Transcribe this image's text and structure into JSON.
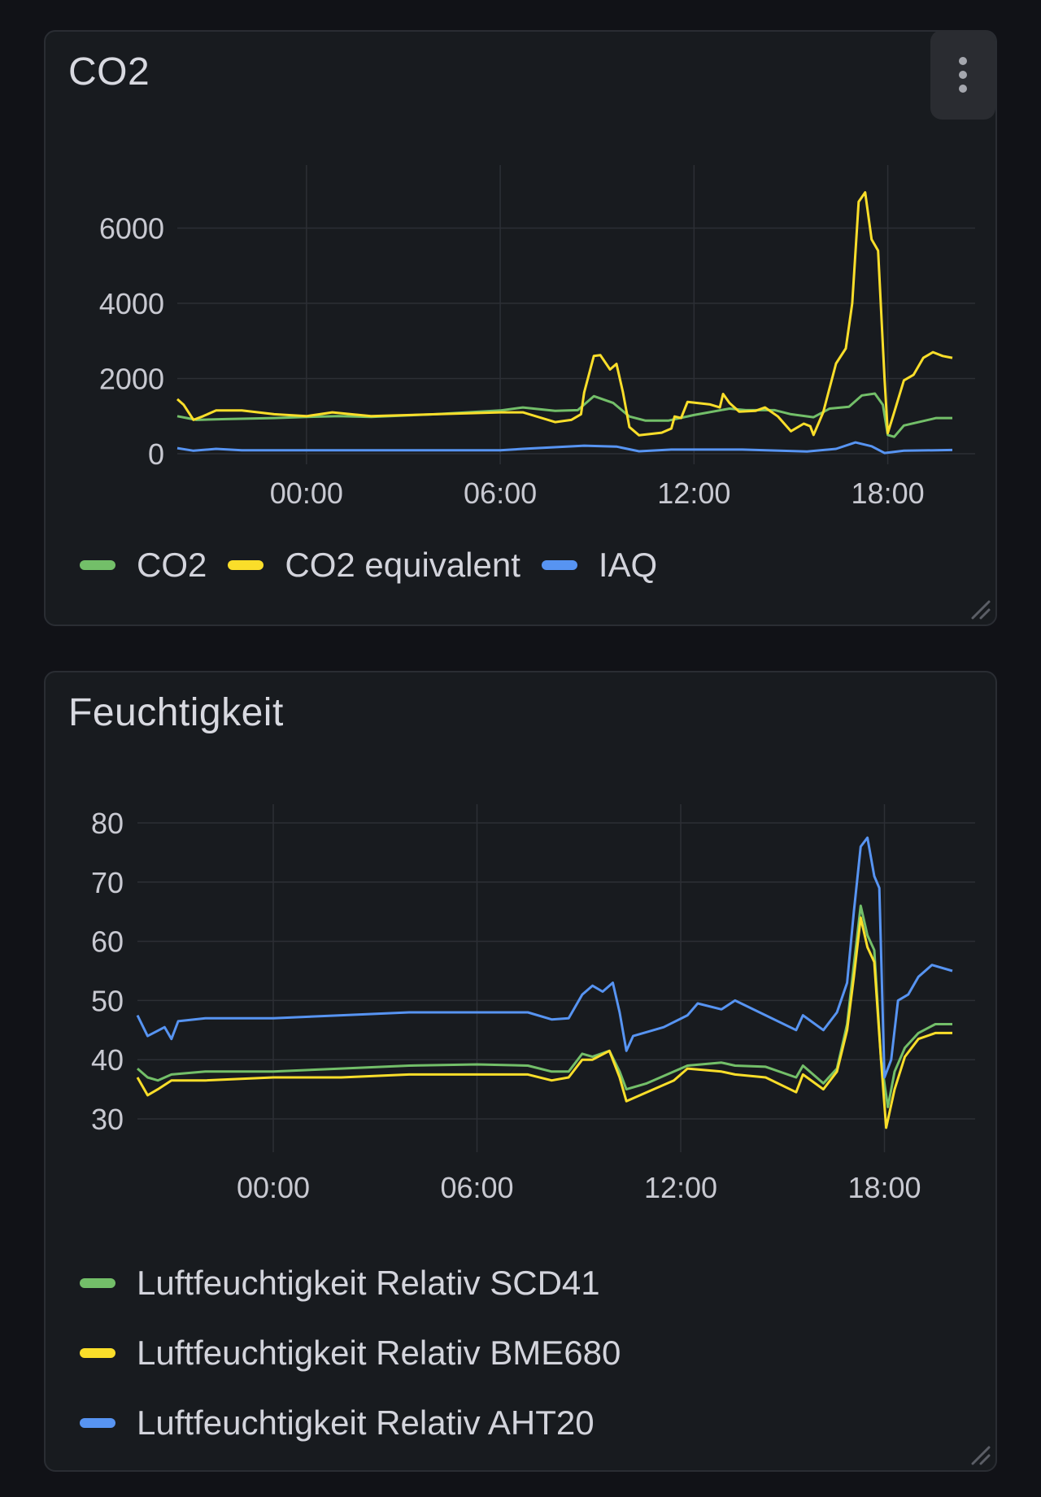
{
  "panels": [
    {
      "title": "CO2",
      "menu_icon": "kebab-vertical-icon",
      "legend": [
        {
          "label": "CO2",
          "color": "#73bf69"
        },
        {
          "label": "CO2 equivalent",
          "color": "#fade2a"
        },
        {
          "label": "IAQ",
          "color": "#5794f2"
        }
      ]
    },
    {
      "title": "Feuchtigkeit",
      "legend": [
        {
          "label": "Luftfeuchtigkeit Relativ SCD41",
          "color": "#73bf69"
        },
        {
          "label": "Luftfeuchtigkeit Relativ BME680",
          "color": "#fade2a"
        },
        {
          "label": "Luftfeuchtigkeit Relativ AHT20",
          "color": "#5794f2"
        }
      ]
    }
  ],
  "chart_data": [
    {
      "type": "line",
      "title": "CO2",
      "xlabel": "",
      "ylabel": "",
      "x_unit": "hours since 20:00 (previous day)",
      "xlim": [
        0,
        24
      ],
      "xticks": [
        {
          "h": 4,
          "label": "00:00"
        },
        {
          "h": 10,
          "label": "06:00"
        },
        {
          "h": 16,
          "label": "12:00"
        },
        {
          "h": 22,
          "label": "18:00"
        }
      ],
      "yticks": [
        0,
        2000,
        4000,
        6000
      ],
      "ylim": [
        0,
        7900
      ],
      "grid": true,
      "legend_position": "bottom",
      "series": [
        {
          "name": "CO2",
          "color": "#73bf69",
          "points": [
            [
              0,
              1000
            ],
            [
              0.3,
              950
            ],
            [
              0.6,
              900
            ],
            [
              1.5,
              920
            ],
            [
              3,
              950
            ],
            [
              4,
              980
            ],
            [
              5,
              1000
            ],
            [
              6,
              980
            ],
            [
              8,
              1050
            ],
            [
              10,
              1150
            ],
            [
              10.7,
              1230
            ],
            [
              11.7,
              1140
            ],
            [
              12.4,
              1160
            ],
            [
              12.9,
              1530
            ],
            [
              13.5,
              1350
            ],
            [
              14.0,
              990
            ],
            [
              14.5,
              880
            ],
            [
              15.2,
              880
            ],
            [
              16.0,
              1030
            ],
            [
              17.1,
              1200
            ],
            [
              17.6,
              1160
            ],
            [
              18.5,
              1160
            ],
            [
              19.0,
              1050
            ],
            [
              19.7,
              970
            ],
            [
              20.2,
              1200
            ],
            [
              20.8,
              1250
            ],
            [
              21.2,
              1550
            ],
            [
              21.6,
              1600
            ],
            [
              21.85,
              1300
            ],
            [
              22.0,
              500
            ],
            [
              22.2,
              450
            ],
            [
              22.5,
              750
            ],
            [
              23.0,
              850
            ],
            [
              23.5,
              950
            ],
            [
              24,
              950
            ]
          ]
        },
        {
          "name": "CO2 equivalent",
          "color": "#fade2a",
          "points": [
            [
              0,
              1450
            ],
            [
              0.2,
              1300
            ],
            [
              0.5,
              900
            ],
            [
              0.8,
              1000
            ],
            [
              1.2,
              1150
            ],
            [
              2,
              1150
            ],
            [
              3,
              1050
            ],
            [
              4,
              1000
            ],
            [
              4.8,
              1100
            ],
            [
              6,
              1000
            ],
            [
              8,
              1050
            ],
            [
              10,
              1100
            ],
            [
              10.7,
              1100
            ],
            [
              11.7,
              840
            ],
            [
              12.2,
              900
            ],
            [
              12.5,
              1050
            ],
            [
              12.6,
              1630
            ],
            [
              12.9,
              2600
            ],
            [
              13.1,
              2620
            ],
            [
              13.4,
              2240
            ],
            [
              13.6,
              2390
            ],
            [
              13.8,
              1630
            ],
            [
              14.0,
              710
            ],
            [
              14.3,
              490
            ],
            [
              15.0,
              560
            ],
            [
              15.3,
              670
            ],
            [
              15.4,
              990
            ],
            [
              15.6,
              950
            ],
            [
              15.8,
              1380
            ],
            [
              16.5,
              1310
            ],
            [
              16.8,
              1230
            ],
            [
              16.9,
              1590
            ],
            [
              17.1,
              1350
            ],
            [
              17.4,
              1120
            ],
            [
              17.9,
              1140
            ],
            [
              18.2,
              1230
            ],
            [
              18.6,
              990
            ],
            [
              19.0,
              600
            ],
            [
              19.4,
              800
            ],
            [
              19.6,
              730
            ],
            [
              19.7,
              500
            ],
            [
              20.0,
              1100
            ],
            [
              20.4,
              2400
            ],
            [
              20.7,
              2800
            ],
            [
              20.9,
              4000
            ],
            [
              21.1,
              6700
            ],
            [
              21.3,
              6950
            ],
            [
              21.5,
              5700
            ],
            [
              21.7,
              5400
            ],
            [
              21.9,
              2000
            ],
            [
              22.0,
              550
            ],
            [
              22.2,
              1100
            ],
            [
              22.5,
              1950
            ],
            [
              22.8,
              2100
            ],
            [
              23.1,
              2550
            ],
            [
              23.4,
              2700
            ],
            [
              23.7,
              2600
            ],
            [
              24,
              2550
            ]
          ]
        },
        {
          "name": "IAQ",
          "color": "#5794f2",
          "points": [
            [
              0,
              150
            ],
            [
              0.5,
              80
            ],
            [
              1.2,
              130
            ],
            [
              2,
              90
            ],
            [
              6,
              90
            ],
            [
              10,
              90
            ],
            [
              10.7,
              130
            ],
            [
              12.6,
              215
            ],
            [
              13.6,
              190
            ],
            [
              14.3,
              65
            ],
            [
              15.3,
              110
            ],
            [
              17.5,
              110
            ],
            [
              19.5,
              60
            ],
            [
              20.4,
              130
            ],
            [
              21.0,
              300
            ],
            [
              21.5,
              200
            ],
            [
              21.9,
              20
            ],
            [
              22.5,
              80
            ],
            [
              24,
              100
            ]
          ]
        }
      ]
    },
    {
      "type": "line",
      "title": "Feuchtigkeit",
      "xlabel": "",
      "ylabel": "",
      "x_unit": "hours since 20:00 (previous day)",
      "xlim": [
        0,
        24
      ],
      "xticks": [
        {
          "h": 4,
          "label": "00:00"
        },
        {
          "h": 10,
          "label": "06:00"
        },
        {
          "h": 16,
          "label": "12:00"
        },
        {
          "h": 22,
          "label": "18:00"
        }
      ],
      "yticks": [
        30,
        40,
        50,
        60,
        70,
        80
      ],
      "ylim": [
        20,
        83
      ],
      "grid": true,
      "legend_position": "bottom",
      "series": [
        {
          "name": "Luftfeuchtigkeit Relativ SCD41",
          "color": "#73bf69",
          "points": [
            [
              0,
              38.5
            ],
            [
              0.3,
              37
            ],
            [
              0.6,
              36.5
            ],
            [
              1.0,
              37.5
            ],
            [
              2,
              38
            ],
            [
              4,
              38
            ],
            [
              6,
              38.5
            ],
            [
              8,
              39
            ],
            [
              10,
              39.2
            ],
            [
              11.5,
              39
            ],
            [
              12.2,
              38
            ],
            [
              12.7,
              38
            ],
            [
              13.1,
              41
            ],
            [
              13.4,
              40.5
            ],
            [
              13.9,
              41.5
            ],
            [
              14.2,
              38
            ],
            [
              14.4,
              35
            ],
            [
              15,
              36
            ],
            [
              15.8,
              38
            ],
            [
              16.2,
              39
            ],
            [
              17.2,
              39.5
            ],
            [
              17.6,
              39
            ],
            [
              18.5,
              38.8
            ],
            [
              19.4,
              37
            ],
            [
              19.6,
              39
            ],
            [
              20.2,
              36
            ],
            [
              20.6,
              38.5
            ],
            [
              20.9,
              46
            ],
            [
              21.1,
              56
            ],
            [
              21.3,
              66
            ],
            [
              21.5,
              61
            ],
            [
              21.7,
              58.5
            ],
            [
              21.9,
              40
            ],
            [
              22.1,
              32
            ],
            [
              22.3,
              38
            ],
            [
              22.6,
              42
            ],
            [
              23.0,
              44.5
            ],
            [
              23.5,
              46
            ],
            [
              24,
              46
            ]
          ]
        },
        {
          "name": "Luftfeuchtigkeit Relativ BME680",
          "color": "#fade2a",
          "points": [
            [
              0,
              37
            ],
            [
              0.3,
              34
            ],
            [
              0.6,
              35
            ],
            [
              1.0,
              36.5
            ],
            [
              2,
              36.5
            ],
            [
              4,
              37
            ],
            [
              6,
              37
            ],
            [
              8,
              37.5
            ],
            [
              10,
              37.5
            ],
            [
              11.5,
              37.5
            ],
            [
              12.2,
              36.5
            ],
            [
              12.7,
              37
            ],
            [
              13.1,
              40
            ],
            [
              13.4,
              40
            ],
            [
              13.9,
              41.5
            ],
            [
              14.2,
              37
            ],
            [
              14.4,
              33
            ],
            [
              15,
              34.5
            ],
            [
              15.8,
              36.5
            ],
            [
              16.2,
              38.5
            ],
            [
              17.2,
              38
            ],
            [
              17.6,
              37.5
            ],
            [
              18.5,
              37
            ],
            [
              19.4,
              34.5
            ],
            [
              19.6,
              37.5
            ],
            [
              20.2,
              35
            ],
            [
              20.6,
              38
            ],
            [
              20.9,
              45
            ],
            [
              21.1,
              54
            ],
            [
              21.3,
              64
            ],
            [
              21.5,
              59
            ],
            [
              21.7,
              56.5
            ],
            [
              21.9,
              40
            ],
            [
              22.05,
              28.5
            ],
            [
              22.3,
              35
            ],
            [
              22.6,
              40.5
            ],
            [
              23.0,
              43.5
            ],
            [
              23.5,
              44.5
            ],
            [
              24,
              44.5
            ]
          ]
        },
        {
          "name": "Luftfeuchtigkeit Relativ AHT20",
          "color": "#5794f2",
          "points": [
            [
              0,
              47.5
            ],
            [
              0.3,
              44
            ],
            [
              0.8,
              45.5
            ],
            [
              1.0,
              43.5
            ],
            [
              1.2,
              46.5
            ],
            [
              2,
              47
            ],
            [
              4,
              47
            ],
            [
              6,
              47.5
            ],
            [
              8,
              48
            ],
            [
              10,
              48
            ],
            [
              11.5,
              48
            ],
            [
              12.2,
              46.8
            ],
            [
              12.7,
              47
            ],
            [
              13.1,
              51
            ],
            [
              13.4,
              52.5
            ],
            [
              13.7,
              51.5
            ],
            [
              14.0,
              53
            ],
            [
              14.2,
              48
            ],
            [
              14.4,
              41.5
            ],
            [
              14.6,
              44
            ],
            [
              15.5,
              45.5
            ],
            [
              16.2,
              47.5
            ],
            [
              16.5,
              49.5
            ],
            [
              17.2,
              48.5
            ],
            [
              17.6,
              50
            ],
            [
              18.5,
              47.5
            ],
            [
              19.4,
              45
            ],
            [
              19.6,
              47.5
            ],
            [
              20.2,
              45
            ],
            [
              20.6,
              48
            ],
            [
              20.9,
              53
            ],
            [
              21.1,
              65
            ],
            [
              21.3,
              76
            ],
            [
              21.5,
              77.5
            ],
            [
              21.7,
              71
            ],
            [
              21.85,
              69
            ],
            [
              22.0,
              37
            ],
            [
              22.2,
              40
            ],
            [
              22.4,
              50
            ],
            [
              22.7,
              51
            ],
            [
              23.0,
              54
            ],
            [
              23.4,
              56
            ],
            [
              24,
              55
            ]
          ]
        }
      ]
    }
  ]
}
